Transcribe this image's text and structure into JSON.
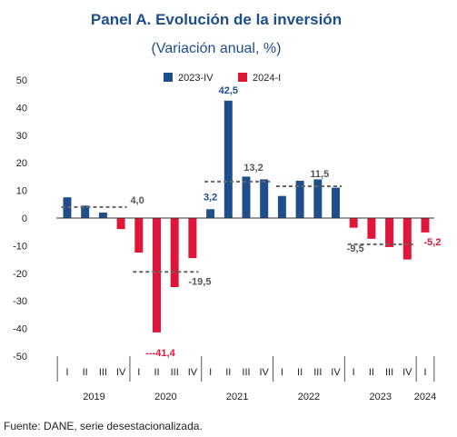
{
  "source": "Fuente: DANE, serie desestacionalizada.",
  "colors": {
    "s2023": "#1f4e8c",
    "s2024": "#e0153a",
    "title": "#1f4e8c",
    "avg": "#666666",
    "label_neg": "#e0153a"
  },
  "chart_data": {
    "type": "bar",
    "title": "Panel A. Evolución de la inversión",
    "subtitle": "(Variación anual, %)",
    "ylim": [
      -50,
      50
    ],
    "yticks": [
      50,
      40,
      30,
      20,
      10,
      0,
      -10,
      -20,
      -30,
      -40,
      -50
    ],
    "legend_position": "top",
    "legend": [
      {
        "name": "2023-IV",
        "color": "#1f4e8c"
      },
      {
        "name": "2024-I",
        "color": "#e0153a"
      }
    ],
    "groups": [
      {
        "year": "2019",
        "quarters": [
          {
            "q": "I",
            "s2023": 7.5,
            "s2024": null
          },
          {
            "q": "II",
            "s2023": 4.5,
            "s2024": null
          },
          {
            "q": "III",
            "s2023": 2.0,
            "s2024": null
          },
          {
            "q": "IV",
            "s2023": null,
            "s2024": -4.0
          }
        ],
        "avg": 4.0,
        "avg_label": "4,0"
      },
      {
        "year": "2020",
        "quarters": [
          {
            "q": "I",
            "s2023": null,
            "s2024": -12.5
          },
          {
            "q": "II",
            "s2023": null,
            "s2024": -41.4
          },
          {
            "q": "III",
            "s2023": null,
            "s2024": -25.0
          },
          {
            "q": "IV",
            "s2023": null,
            "s2024": -14.5
          }
        ],
        "avg": -19.5,
        "avg_label": "-19,5",
        "min_label": "---41,4"
      },
      {
        "year": "2021",
        "quarters": [
          {
            "q": "I",
            "s2023": 3.2,
            "s2024": null
          },
          {
            "q": "II",
            "s2023": 42.5,
            "s2024": null
          },
          {
            "q": "III",
            "s2023": 15.0,
            "s2024": null
          },
          {
            "q": "IV",
            "s2023": 14.0,
            "s2024": null
          }
        ],
        "avg": 13.2,
        "avg_label": "13,2",
        "first_label": "3,2",
        "max_label": "42,5"
      },
      {
        "year": "2022",
        "quarters": [
          {
            "q": "I",
            "s2023": 8.0,
            "s2024": null
          },
          {
            "q": "II",
            "s2023": 13.5,
            "s2024": null
          },
          {
            "q": "III",
            "s2023": 14.0,
            "s2024": null
          },
          {
            "q": "IV",
            "s2023": 11.0,
            "s2024": null
          }
        ],
        "avg": 11.5,
        "avg_label": "11,5"
      },
      {
        "year": "2023",
        "quarters": [
          {
            "q": "I",
            "s2023": null,
            "s2024": -3.5
          },
          {
            "q": "II",
            "s2023": null,
            "s2024": -7.5
          },
          {
            "q": "III",
            "s2023": null,
            "s2024": -10.5
          },
          {
            "q": "IV",
            "s2023": null,
            "s2024": -15.0
          }
        ],
        "avg": -9.5,
        "avg_label": "-9,5"
      },
      {
        "year": "2024",
        "quarters": [
          {
            "q": "I",
            "s2023": null,
            "s2024": -5.2
          }
        ],
        "avg": null,
        "last_label": "-5,2"
      }
    ]
  }
}
